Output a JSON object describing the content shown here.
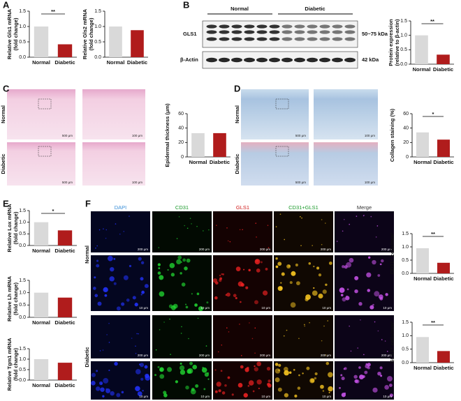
{
  "panel_labels": [
    "A",
    "B",
    "C",
    "D",
    "E",
    "F"
  ],
  "blot": {
    "groups": [
      "Normal",
      "Diabetic"
    ],
    "rows": [
      "GLS1",
      "β-Actin"
    ],
    "sizes": [
      "50~75 kDa",
      "42 kDa"
    ]
  },
  "histology": {
    "rows": [
      "Normal",
      "Diabetic"
    ],
    "scales": [
      "500 μm",
      "100 μm"
    ]
  },
  "fluorescence": {
    "columns": [
      "DAPI",
      "CD31",
      "GLS1",
      "CD31+GLS1",
      "Merge"
    ],
    "rows": [
      "Normal",
      "Diabetic"
    ],
    "scales": [
      "200 μm",
      "10 μm"
    ]
  },
  "chart_data": [
    {
      "type": "bar",
      "ylabel": [
        "Relative Gls1 mRNA",
        "(fold change)"
      ],
      "categories": [
        "Normal",
        "Diabetic"
      ],
      "values": [
        1.0,
        0.42
      ],
      "colors": [
        "#d9d9d9",
        "#b01c1c"
      ],
      "ylim": [
        0,
        1.5
      ],
      "yticks": [
        {
          "value": 0,
          "label": "0.0"
        },
        0.5,
        {
          "value": 1,
          "label": "1.0"
        },
        1.5
      ],
      "significance": "**"
    },
    {
      "type": "bar",
      "ylabel": [
        "Relative Gls2 mRNA",
        "(fold change)"
      ],
      "categories": [
        "Normal",
        "Diabetic"
      ],
      "values": [
        1.0,
        0.88
      ],
      "colors": [
        "#d9d9d9",
        "#b01c1c"
      ],
      "ylim": [
        0,
        1.5
      ],
      "yticks": [
        {
          "value": 0,
          "label": "0.0"
        },
        0.5,
        {
          "value": 1,
          "label": "1.0"
        },
        1.5
      ]
    },
    {
      "type": "bar",
      "ylabel": [
        "Protein expression",
        "(relative to β-actin)"
      ],
      "categories": [
        "Normal",
        "Diabetic"
      ],
      "values": [
        1.0,
        0.33
      ],
      "colors": [
        "#d9d9d9",
        "#b01c1c"
      ],
      "ylim": [
        0,
        1.5
      ],
      "yticks": [
        {
          "value": 0,
          "label": "0.0"
        },
        0.5,
        {
          "value": 1,
          "label": "1.0"
        },
        1.5
      ],
      "significance": "**"
    },
    {
      "type": "bar",
      "ylabel": [
        "Epidermal thickness (μm)"
      ],
      "categories": [
        "Normal",
        "Diabetic"
      ],
      "values": [
        33,
        33
      ],
      "colors": [
        "#d9d9d9",
        "#b01c1c"
      ],
      "ylim": [
        0,
        60
      ],
      "yticks": [
        0,
        20,
        40,
        60
      ]
    },
    {
      "type": "bar",
      "ylabel": [
        "Collagen staining (%)"
      ],
      "categories": [
        "Normal",
        "Diabetic"
      ],
      "values": [
        34,
        24
      ],
      "colors": [
        "#d9d9d9",
        "#b01c1c"
      ],
      "ylim": [
        0,
        60
      ],
      "yticks": [
        0,
        20,
        40,
        60
      ],
      "significance": "*"
    },
    {
      "type": "bar",
      "ylabel": [
        "Relative Lox mRNA",
        "(fold change)"
      ],
      "categories": [
        "Normal",
        "Diabetic"
      ],
      "values": [
        1.0,
        0.65
      ],
      "colors": [
        "#d9d9d9",
        "#b01c1c"
      ],
      "ylim": [
        0,
        1.5
      ],
      "yticks": [
        {
          "value": 0,
          "label": "0.0"
        },
        0.5,
        {
          "value": 1,
          "label": "1.0"
        },
        1.5
      ],
      "significance": "*"
    },
    {
      "type": "bar",
      "ylabel": [
        "Relative Lh mRNA",
        "(fold change)"
      ],
      "categories": [
        "Normal",
        "Diabetic"
      ],
      "values": [
        1.0,
        0.8
      ],
      "colors": [
        "#d9d9d9",
        "#b01c1c"
      ],
      "ylim": [
        0,
        1.5
      ],
      "yticks": [
        {
          "value": 0,
          "label": "0.0"
        },
        0.5,
        {
          "value": 1,
          "label": "1.0"
        },
        1.5
      ]
    },
    {
      "type": "bar",
      "ylabel": [
        "Relative Tgm1 mRNA",
        "(fold change)"
      ],
      "categories": [
        "Normal",
        "Diabetic"
      ],
      "values": [
        1.0,
        0.83
      ],
      "colors": [
        "#d9d9d9",
        "#b01c1c"
      ],
      "ylim": [
        0,
        1.5
      ],
      "yticks": [
        {
          "value": 0,
          "label": "0.0"
        },
        0.5,
        {
          "value": 1,
          "label": "1.0"
        },
        1.5
      ]
    },
    {
      "type": "bar",
      "ylabel": [
        "CD31⁺ cells/mm²"
      ],
      "categories": [
        "Normal",
        "Diabetic"
      ],
      "values": [
        0.95,
        0.4
      ],
      "colors": [
        "#d9d9d9",
        "#b01c1c"
      ],
      "ylim": [
        0,
        1.5
      ],
      "yticks": [
        {
          "value": 0,
          "label": "0.0"
        },
        0.5,
        {
          "value": 1,
          "label": "1.0"
        },
        1.5
      ],
      "significance": "**"
    },
    {
      "type": "bar",
      "ylabel": [
        "GLS1⁺ cells/mm²"
      ],
      "categories": [
        "Normal",
        "Diabetic"
      ],
      "values": [
        0.95,
        0.43
      ],
      "colors": [
        "#d9d9d9",
        "#b01c1c"
      ],
      "ylim": [
        0,
        1.5
      ],
      "yticks": [
        {
          "value": 0,
          "label": "0.0"
        },
        0.5,
        {
          "value": 1,
          "label": "1.0"
        },
        1.5
      ],
      "significance": "**"
    }
  ]
}
